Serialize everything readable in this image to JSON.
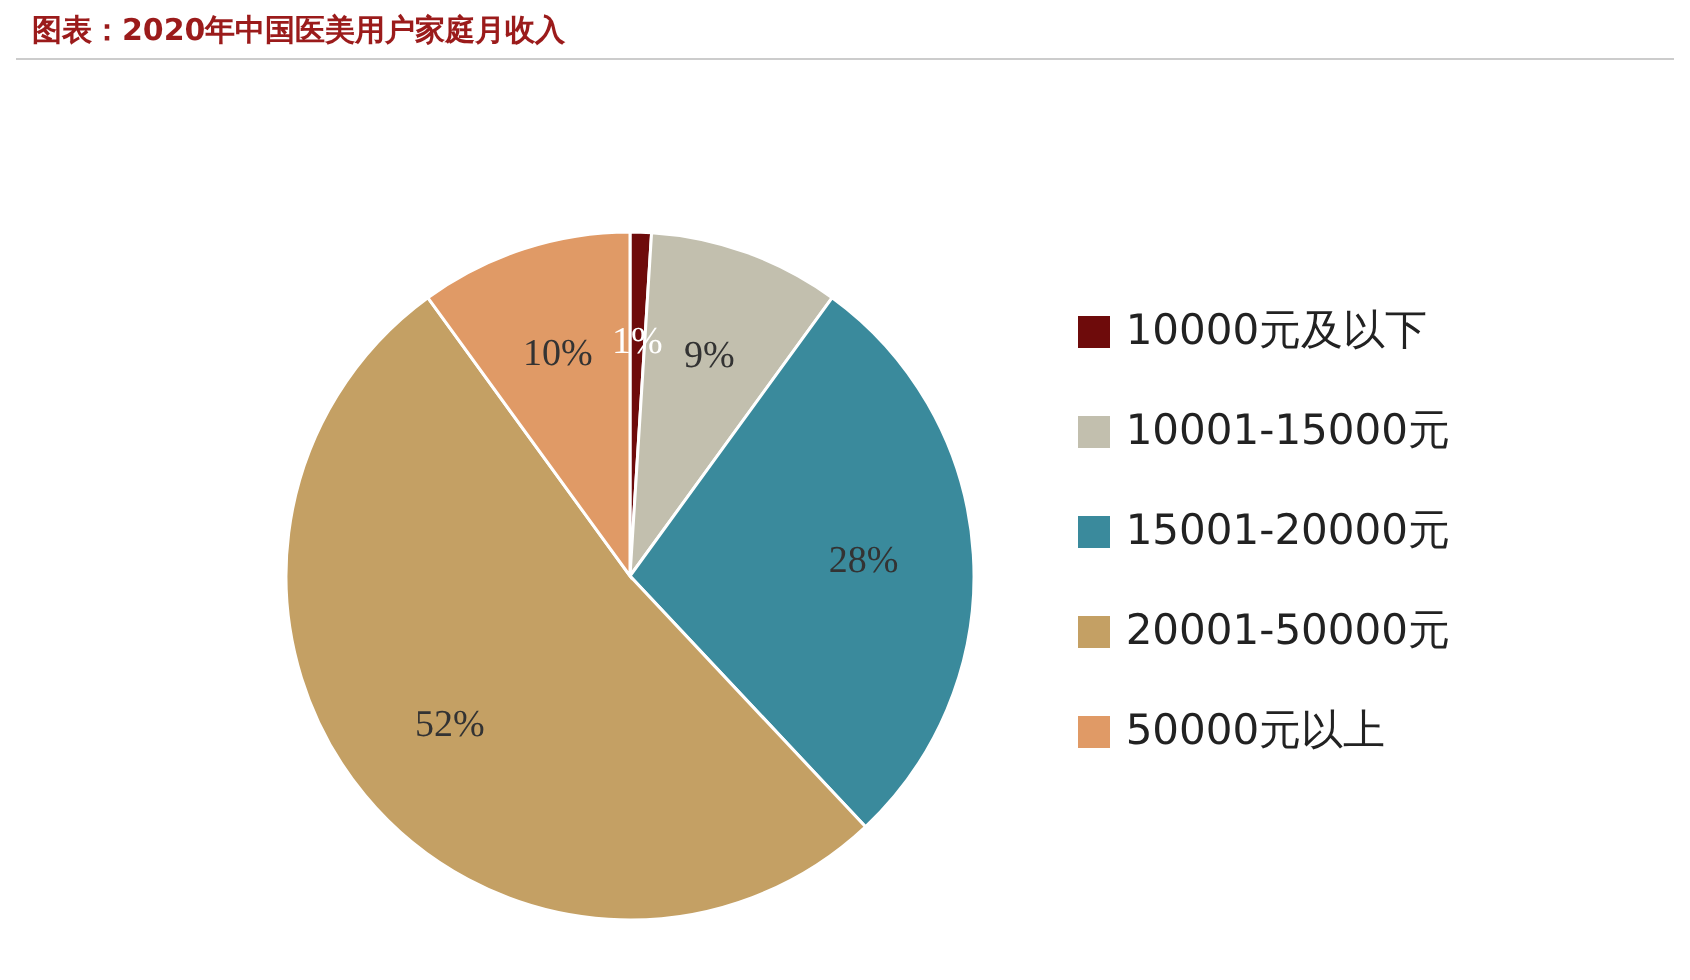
{
  "chart_data": {
    "type": "pie",
    "title": "图表：2020年中国医美用户家庭月收入",
    "categories": [
      "10000元及以下",
      "10001-15000元",
      "15001-20000元",
      "20001-50000元",
      "50000元以上"
    ],
    "values": [
      1,
      9,
      28,
      52,
      10
    ],
    "colors": [
      "#6e0b0b",
      "#c2bfae",
      "#3a8a9c",
      "#c4a064",
      "#e09a66"
    ],
    "value_labels": [
      "1%",
      "9%",
      "28%",
      "52%",
      "10%"
    ],
    "legend": "right"
  }
}
